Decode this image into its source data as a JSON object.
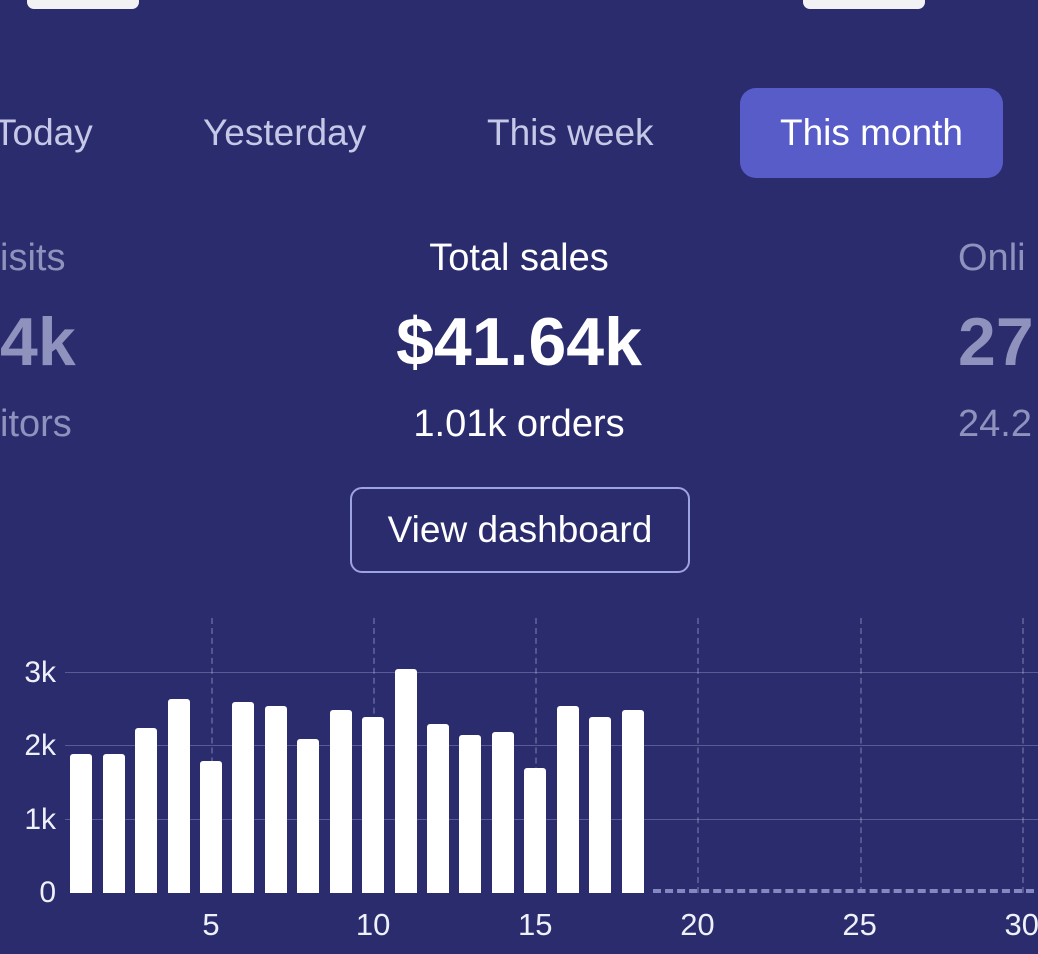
{
  "tabs": {
    "items": [
      {
        "label": "Today",
        "selected": false
      },
      {
        "label": "Yesterday",
        "selected": false
      },
      {
        "label": "This week",
        "selected": false
      },
      {
        "label": "This month",
        "selected": true
      }
    ]
  },
  "stats": {
    "left": {
      "label": "isits",
      "value": "4k",
      "sub": "itors"
    },
    "center": {
      "label": "Total sales",
      "value": "$41.64k",
      "sub": "1.01k orders"
    },
    "right": {
      "label": "Onli",
      "value": "27",
      "sub": "24.2"
    }
  },
  "actions": {
    "view_dashboard_label": "View dashboard"
  },
  "colors": {
    "background": "#2b2c6e",
    "selected_tab": "#575cc8",
    "muted_text": "#8f92bd",
    "bar": "#ffffff",
    "button_border": "#9da2e0"
  },
  "chart_data": {
    "type": "bar",
    "title": "",
    "xlabel": "",
    "ylabel": "",
    "x": [
      1,
      2,
      3,
      4,
      5,
      6,
      7,
      8,
      9,
      10,
      11,
      12,
      13,
      14,
      15,
      16,
      17,
      18,
      19,
      20,
      21,
      22,
      23,
      24,
      25,
      26,
      27,
      28,
      29,
      30
    ],
    "values": [
      1900,
      1900,
      2250,
      2650,
      1800,
      2600,
      2550,
      2100,
      2500,
      2400,
      3050,
      2300,
      2150,
      2200,
      1700,
      2550,
      2400,
      2500,
      0,
      0,
      0,
      0,
      0,
      0,
      0,
      0,
      0,
      0,
      0,
      0
    ],
    "yticks": [
      {
        "value": 0,
        "label": "0"
      },
      {
        "value": 1000,
        "label": "1k"
      },
      {
        "value": 2000,
        "label": "2k"
      },
      {
        "value": 3000,
        "label": "3k"
      }
    ],
    "xticks": [
      5,
      10,
      15,
      20,
      25,
      30
    ],
    "ylim": [
      0,
      3750
    ],
    "grid": true,
    "legend": false,
    "no_data_from": 19
  }
}
